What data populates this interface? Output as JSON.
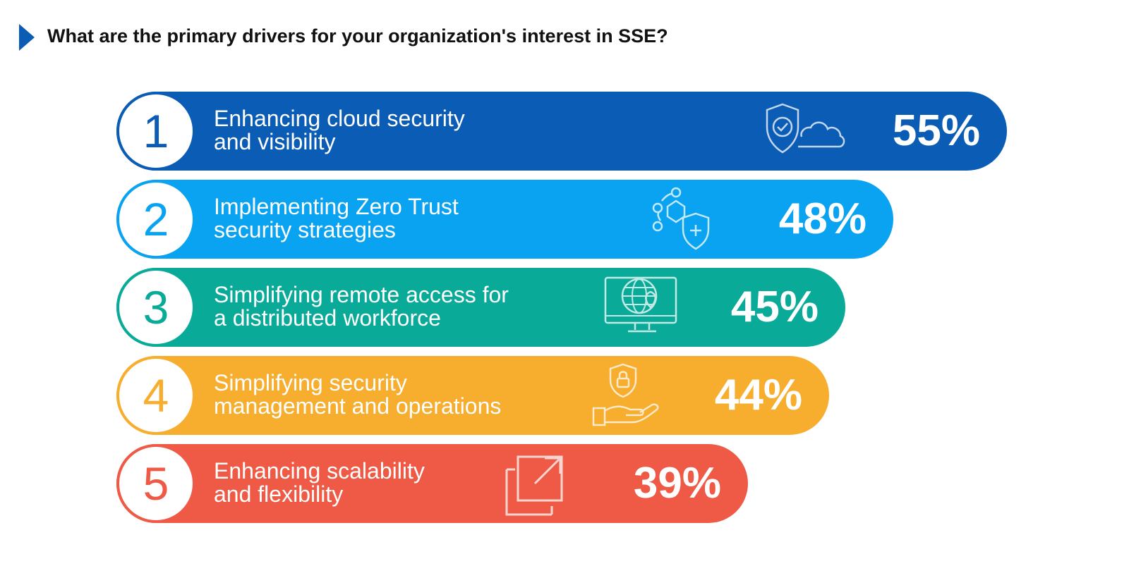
{
  "header": {
    "title": "What are the primary drivers for your organization's interest in SSE?",
    "arrow_color": "#0b5cb5"
  },
  "chart_data": {
    "type": "bar",
    "orientation": "horizontal",
    "title": "What are the primary drivers for your organization's interest in SSE?",
    "categories": [
      "Enhancing cloud security and visibility",
      "Implementing Zero Trust security strategies",
      "Simplifying remote access for a distributed workforce",
      "Simplifying security management and operations",
      "Enhancing scalability and flexibility"
    ],
    "values": [
      55,
      48,
      45,
      44,
      39
    ],
    "unit": "%",
    "xlim": [
      0,
      55
    ],
    "grid": false,
    "legend": "none"
  },
  "bars": [
    {
      "rank": "1",
      "label": "Enhancing cloud security\nand visibility",
      "value_text": "55%",
      "value": 55,
      "color": "#0b5cb5",
      "icon": "shield-cloud-icon"
    },
    {
      "rank": "2",
      "label": "Implementing Zero Trust\nsecurity strategies",
      "value_text": "48%",
      "value": 48,
      "color": "#0aa3f2",
      "icon": "network-shield-icon"
    },
    {
      "rank": "3",
      "label": "Simplifying remote access for\na distributed workforce",
      "value_text": "45%",
      "value": 45,
      "color": "#0aaa98",
      "icon": "monitor-globe-icon"
    },
    {
      "rank": "4",
      "label": "Simplifying security\nmanagement and operations",
      "value_text": "44%",
      "value": 44,
      "color": "#f7ad2d",
      "icon": "hand-lock-icon"
    },
    {
      "rank": "5",
      "label": "Enhancing scalability\nand flexibility",
      "value_text": "39%",
      "value": 39,
      "color": "#ee5a45",
      "icon": "expand-arrow-icon"
    }
  ]
}
